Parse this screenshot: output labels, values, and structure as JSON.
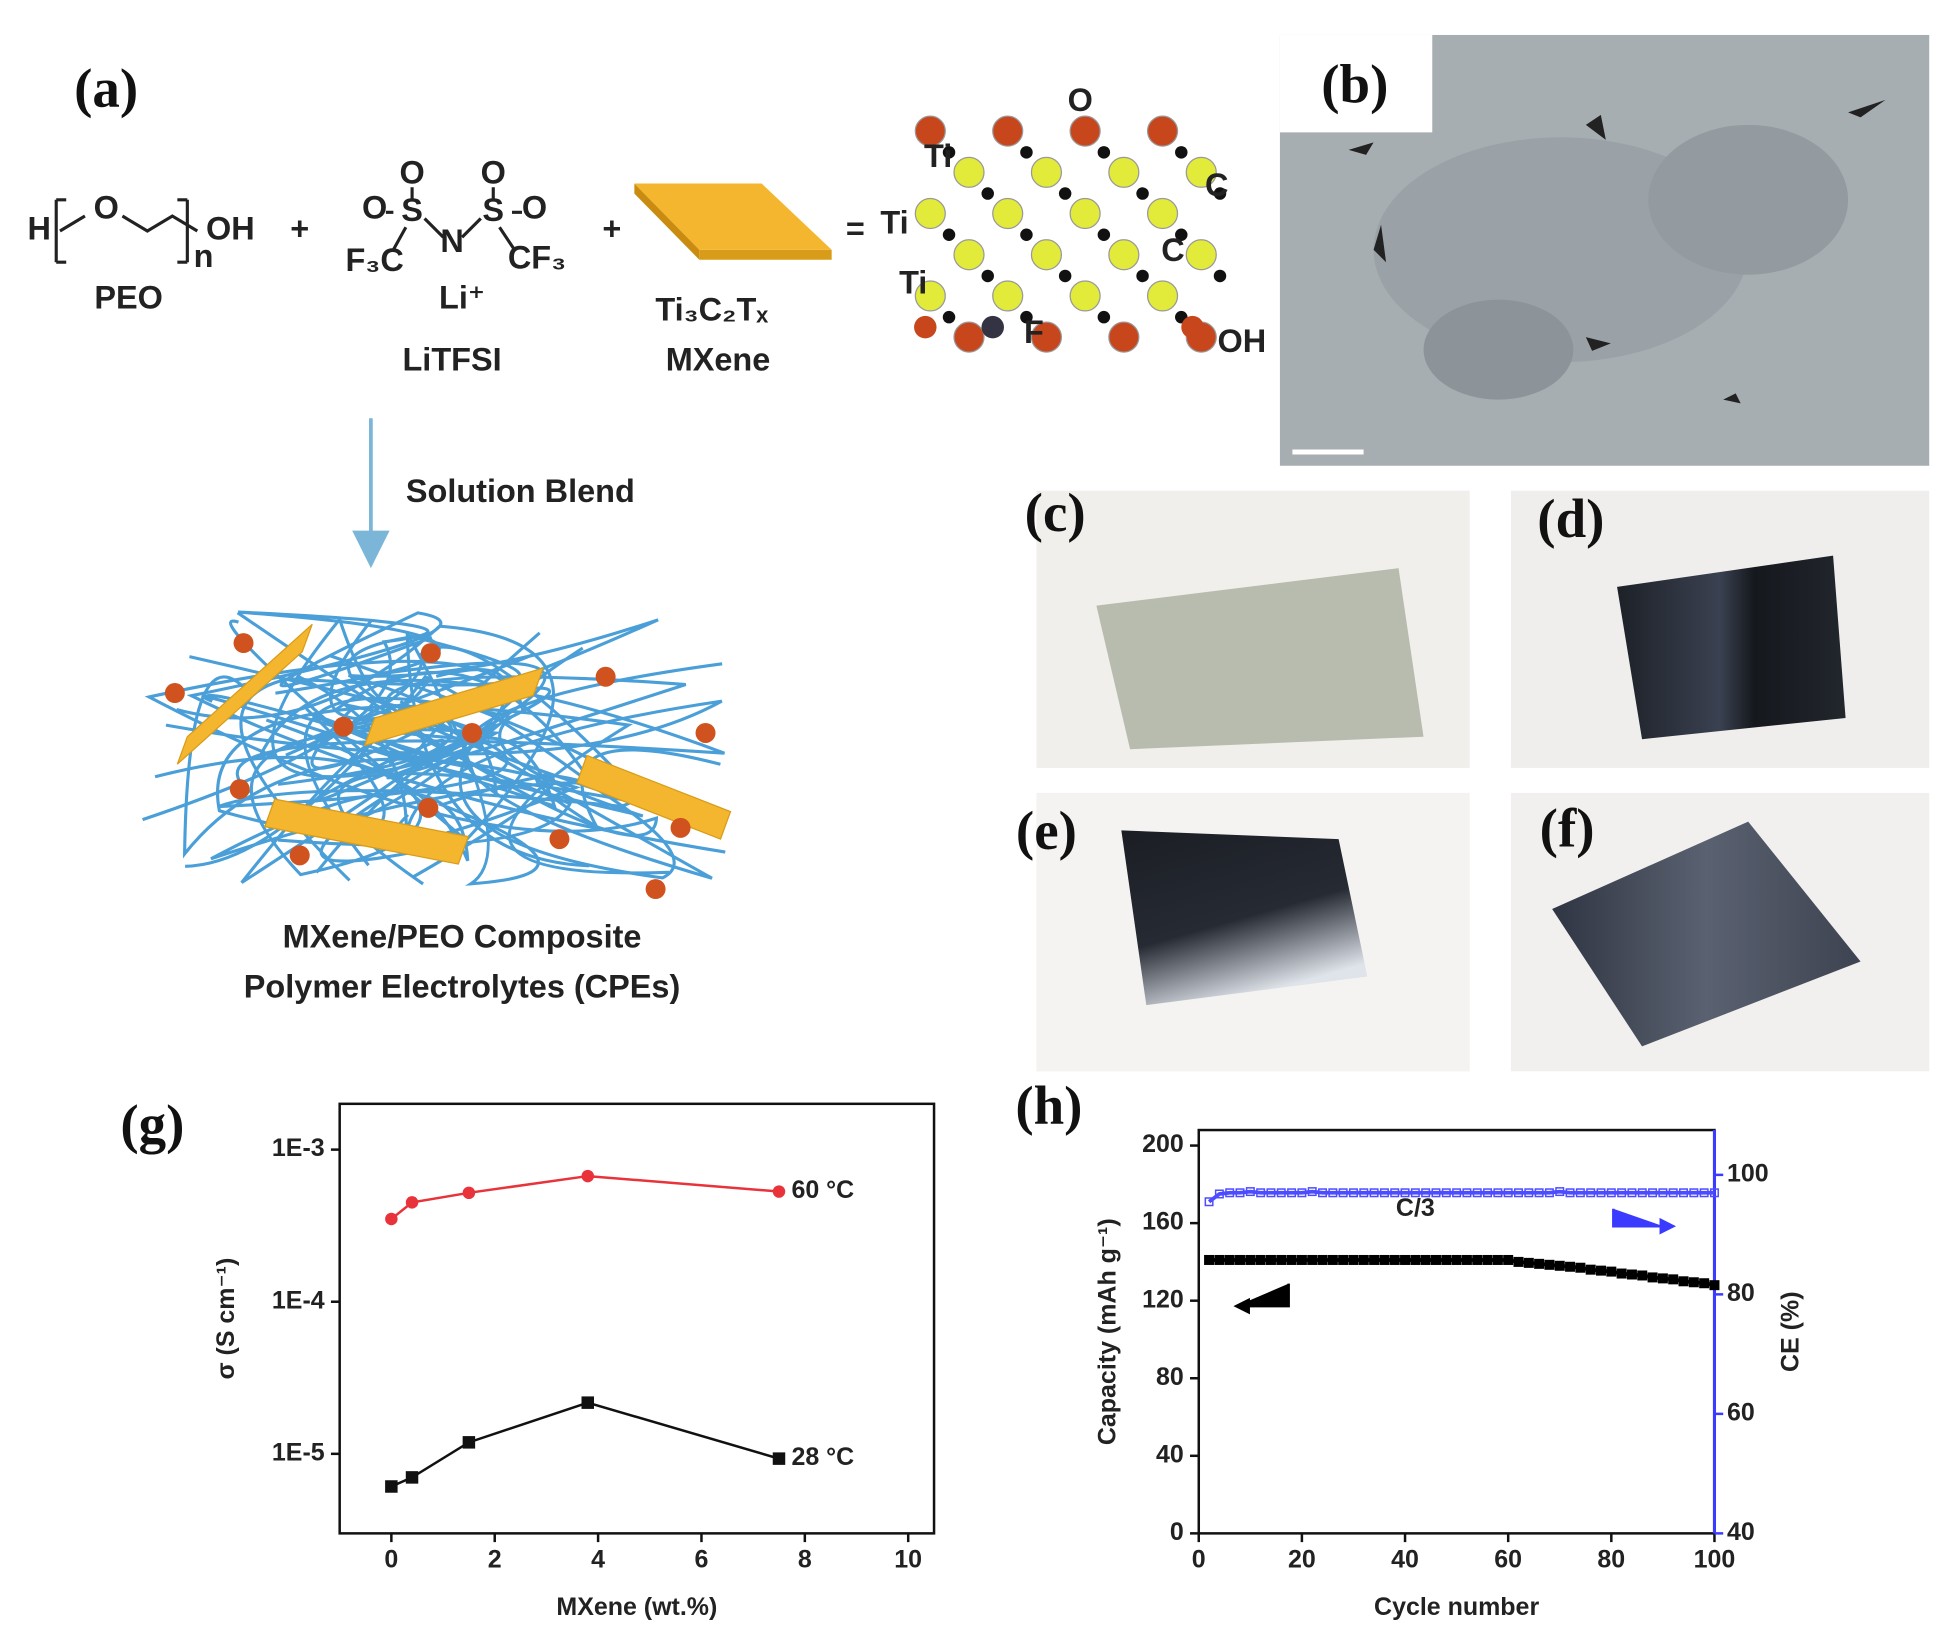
{
  "panel_labels": [
    "(a)",
    "(b)",
    "(c)",
    "(d)",
    "(e)",
    "(f)",
    "(g)",
    "(h)"
  ],
  "scheme": {
    "peo": {
      "h": "H",
      "o": "O",
      "n": "n",
      "oh": "OH",
      "name": "PEO"
    },
    "plus": "+",
    "equals": "=",
    "litfsi": {
      "o": "O",
      "s": "S",
      "n": "N",
      "f3c": "F₃C",
      "cf3": "CF₃",
      "li": "Li⁺",
      "name": "LiTFSI"
    },
    "mxene": {
      "formula": "Ti₃C₂Tₓ",
      "name": "MXene"
    },
    "atoms": {
      "ti": "Ti",
      "o": "O",
      "c": "C",
      "f": "F",
      "oh": "OH"
    },
    "step": "Solution Blend",
    "product": [
      "MXene/PEO Composite",
      "Polymer Electrolytes (CPEs)"
    ]
  },
  "chart_data": [
    {
      "type": "line",
      "log_y": true,
      "xlabel": "MXene (wt.%)",
      "ylabel": "σ (S cm⁻¹)",
      "x": [
        0,
        0.4,
        1.5,
        3.8,
        7.5
      ],
      "xlim": [
        -1,
        10.5
      ],
      "xticks": [
        0,
        2,
        4,
        6,
        8,
        10
      ],
      "ylim": [
        3e-06,
        0.002
      ],
      "yticks": [
        {
          "value": 0.001,
          "label": "1E-3"
        },
        {
          "value": 0.0001,
          "label": "1E-4"
        },
        {
          "value": 1e-05,
          "label": "1E-5"
        }
      ],
      "series": [
        {
          "name": "60 °C",
          "color": "#e8333a",
          "marker": "circle",
          "values": [
            0.00035,
            0.00045,
            0.00052,
            0.00067,
            0.00053
          ]
        },
        {
          "name": "28 °C",
          "color": "#111111",
          "marker": "square",
          "values": [
            6.1e-06,
            7e-06,
            1.19e-05,
            2.17e-05,
            9.3e-06
          ]
        }
      ]
    },
    {
      "type": "line",
      "xlabel": "Cycle number",
      "ylabel": "Capacity (mAh g⁻¹)",
      "y2label": "CE (%)",
      "annotation": "C/3",
      "x": [
        2,
        4,
        6,
        8,
        10,
        12,
        14,
        16,
        18,
        20,
        22,
        24,
        26,
        28,
        30,
        32,
        34,
        36,
        38,
        40,
        42,
        44,
        46,
        48,
        50,
        52,
        54,
        56,
        58,
        60,
        62,
        64,
        66,
        68,
        70,
        72,
        74,
        76,
        78,
        80,
        82,
        84,
        86,
        88,
        90,
        92,
        94,
        96,
        98,
        100
      ],
      "xlim": [
        0,
        100
      ],
      "xticks": [
        0,
        20,
        40,
        60,
        80,
        100
      ],
      "ylim": [
        0,
        208
      ],
      "yticks": [
        0,
        40,
        80,
        120,
        160,
        200
      ],
      "y2lim": [
        40,
        107.5
      ],
      "y2ticks": [
        40,
        60,
        80,
        100
      ],
      "y2color": "#3b3bff",
      "series": [
        {
          "color": "#000000",
          "marker": "square",
          "values": [
            141,
            141,
            141,
            141,
            141,
            141,
            141,
            141,
            141,
            141,
            141,
            141,
            141,
            141,
            141,
            141,
            141,
            141,
            141,
            141,
            141,
            141,
            141,
            141,
            141,
            141,
            141,
            141,
            141,
            141,
            140,
            139.5,
            139,
            138.5,
            138,
            137.5,
            137,
            136,
            135.5,
            135,
            134,
            133.5,
            133,
            132,
            131.5,
            131,
            130,
            129.5,
            129,
            128
          ]
        },
        {
          "color": "#4d4dff",
          "marker": "hollow-square",
          "axis": "y2",
          "values": [
            95.5,
            96.8,
            97,
            97,
            97.2,
            97,
            97,
            97,
            97,
            97,
            97.2,
            97,
            97,
            97,
            97,
            97,
            97,
            97,
            97,
            97,
            97,
            97,
            97,
            97,
            97,
            97,
            97,
            97,
            97,
            97,
            97,
            97,
            97,
            97,
            97.2,
            97,
            97,
            97,
            97,
            97,
            97,
            97,
            97,
            97,
            97,
            97,
            97,
            97,
            97,
            97
          ]
        }
      ]
    }
  ]
}
